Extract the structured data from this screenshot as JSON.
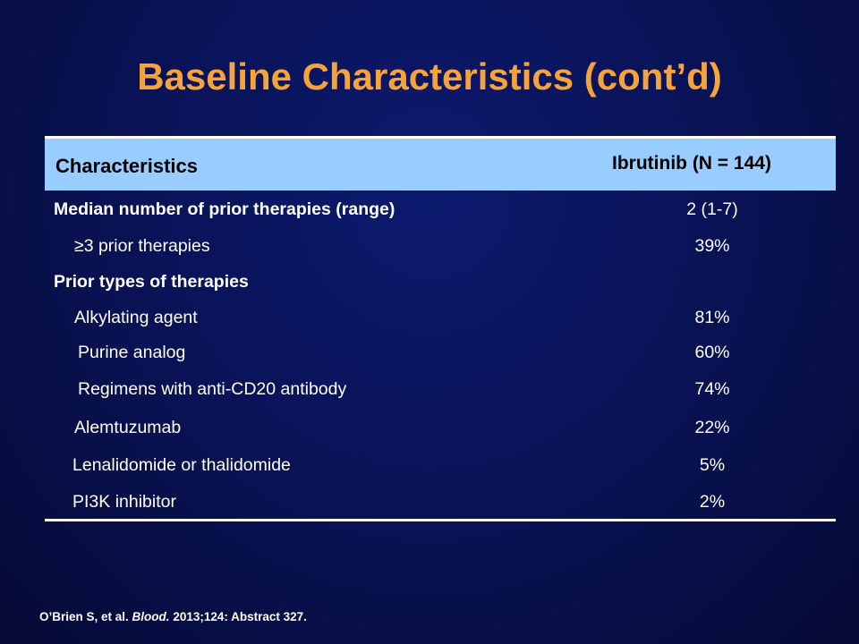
{
  "title": "Baseline Characteristics (cont’d)",
  "table": {
    "headers": {
      "characteristics": "Characteristics",
      "ibrutinib": "Ibrutinib (N = 144)"
    },
    "rows": [
      {
        "label": "Median number of prior therapies (range)",
        "value": "2 (1-7)"
      },
      {
        "label": "≥3 prior therapies",
        "value": "39%"
      },
      {
        "label": "Prior types of therapies",
        "value": ""
      },
      {
        "label": "Alkylating agent",
        "value": "81%"
      },
      {
        "label": "Purine analog",
        "value": "60%"
      },
      {
        "label": "Regimens with anti-CD20 antibody",
        "value": "74%"
      },
      {
        "label": "Alemtuzumab",
        "value": "22%"
      },
      {
        "label": "Lenalidomide or thalidomide",
        "value": "5%"
      },
      {
        "label": "PI3K inhibitor",
        "value": "2%"
      }
    ]
  },
  "citation": {
    "authors": "O’Brien S, et al.",
    "journal": "Blood.",
    "details": "2013;124: Abstract  327."
  }
}
